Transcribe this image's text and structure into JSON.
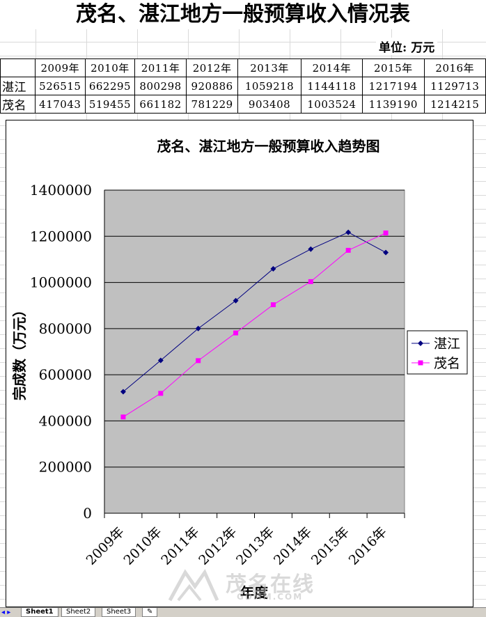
{
  "sheet_title": "茂名、湛江地方一般预算收入情况表",
  "unit_label": "单位: 万元",
  "table": {
    "headers": [
      "2009年",
      "2010年",
      "2011年",
      "2012年",
      "2013年",
      "2014年",
      "2015年",
      "2016年"
    ],
    "rows": [
      {
        "label": "湛江",
        "values": [
          "526515",
          "662295",
          "800298",
          "920886",
          "1059218",
          "1144118",
          "1217194",
          "1129713"
        ]
      },
      {
        "label": "茂名",
        "values": [
          "417043",
          "519455",
          "661182",
          "781229",
          "903408",
          "1003524",
          "1139190",
          "1214215"
        ]
      }
    ]
  },
  "chart_data": {
    "type": "line",
    "title": "茂名、湛江地方一般预算收入趋势图",
    "xlabel": "年度",
    "ylabel": "完成数（万元）",
    "categories": [
      "2009年",
      "2010年",
      "2011年",
      "2012年",
      "2013年",
      "2014年",
      "2015年",
      "2016年"
    ],
    "ylim": [
      0,
      1400000
    ],
    "yticks": [
      "0",
      "200000",
      "400000",
      "600000",
      "800000",
      "1000000",
      "1200000",
      "1400000"
    ],
    "grid": true,
    "legend_position": "right",
    "plot_background": "#c0c0c0",
    "series": [
      {
        "name": "湛江",
        "color": "#000080",
        "marker": "diamond",
        "values": [
          526515,
          662295,
          800298,
          920886,
          1059218,
          1144118,
          1217194,
          1129713
        ]
      },
      {
        "name": "茂名",
        "color": "#ff00ff",
        "marker": "square",
        "values": [
          417043,
          519455,
          661182,
          781229,
          903408,
          1003524,
          1139190,
          1214215
        ]
      }
    ]
  },
  "sheet_tabs": [
    "Sheet1",
    "Sheet2",
    "Sheet3"
  ],
  "watermark": {
    "brand": "茂名在线",
    "domain": "GDMM.COM"
  }
}
